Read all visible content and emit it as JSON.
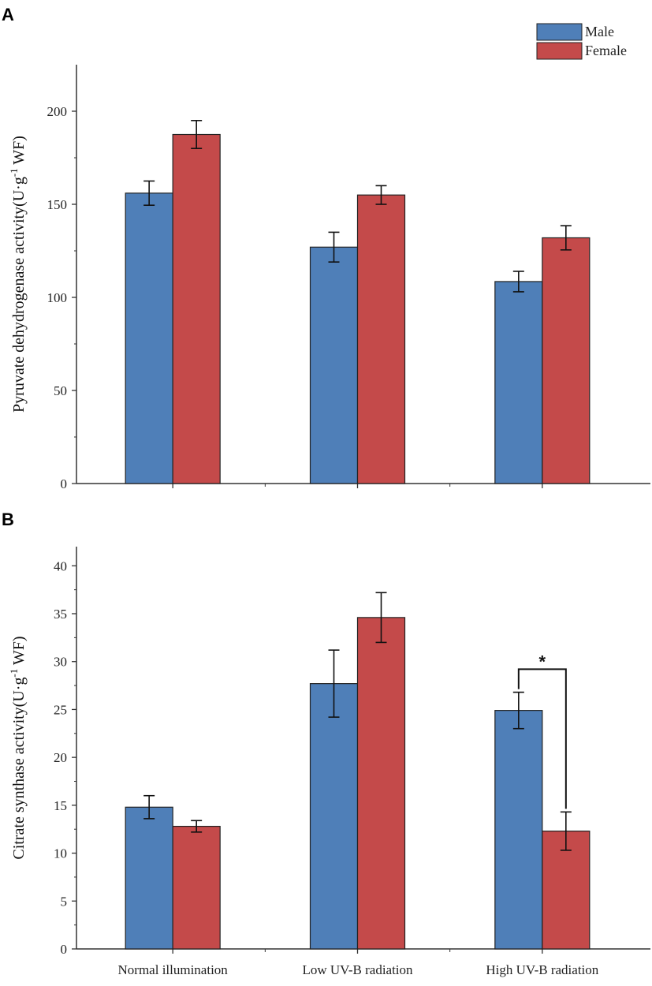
{
  "chart_data": [
    {
      "panel": "A",
      "type": "bar",
      "categories": [
        "Normal illumination",
        "Low UV-B radiation",
        "High UV-B radiation"
      ],
      "series": [
        {
          "name": "Male",
          "values": [
            156,
            127,
            108.5
          ],
          "errors": [
            6.5,
            8,
            5.5
          ],
          "color": "#4f7fb8"
        },
        {
          "name": "Female",
          "values": [
            187.5,
            155,
            132
          ],
          "errors": [
            7.5,
            5,
            6.5
          ],
          "color": "#c44a4a"
        }
      ],
      "ylabel_main": "Pyruvate dehydrogenase activity(U·g",
      "ylabel_sup": "-1",
      "ylabel_tail": " WF)",
      "ylim": [
        0,
        225
      ],
      "yticks": [
        0,
        50,
        100,
        150,
        200
      ],
      "legend": [
        "Male",
        "Female"
      ],
      "legend_position": "top-right"
    },
    {
      "panel": "B",
      "type": "bar",
      "categories": [
        "Normal illumination",
        "Low UV-B radiation",
        "High UV-B radiation"
      ],
      "series": [
        {
          "name": "Male",
          "values": [
            14.8,
            27.7,
            24.9
          ],
          "errors": [
            1.2,
            3.5,
            1.9
          ],
          "color": "#4f7fb8"
        },
        {
          "name": "Female",
          "values": [
            12.8,
            34.6,
            12.3
          ],
          "errors": [
            0.6,
            2.6,
            2.0
          ],
          "color": "#c44a4a"
        }
      ],
      "ylabel_main": "Citrate synthase activity(U·g",
      "ylabel_sup": "-1",
      "ylabel_tail": " WF)",
      "ylim": [
        0,
        42
      ],
      "yticks": [
        0,
        5,
        10,
        15,
        20,
        25,
        30,
        35,
        40
      ],
      "annotations": [
        {
          "text": "*",
          "category_index": 2
        }
      ]
    }
  ]
}
